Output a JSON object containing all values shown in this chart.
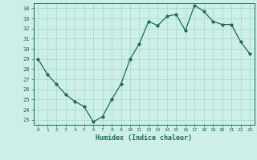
{
  "x": [
    0,
    1,
    2,
    3,
    4,
    5,
    6,
    7,
    8,
    9,
    10,
    11,
    12,
    13,
    14,
    15,
    16,
    17,
    18,
    19,
    20,
    21,
    22,
    23
  ],
  "y": [
    29,
    27.5,
    26.5,
    25.5,
    24.8,
    24.3,
    22.8,
    23.3,
    25.0,
    26.5,
    29.0,
    30.5,
    32.7,
    32.3,
    33.2,
    33.4,
    31.8,
    34.3,
    33.7,
    32.7,
    32.4,
    32.4,
    30.7,
    29.5
  ],
  "line_color": "#1a6b5a",
  "bg_color": "#ceeee8",
  "grid_color": "#aaddcc",
  "xlabel": "Humidex (Indice chaleur)",
  "ylim": [
    22.5,
    34.5
  ],
  "xlim": [
    -0.5,
    23.5
  ],
  "yticks": [
    23,
    24,
    25,
    26,
    27,
    28,
    29,
    30,
    31,
    32,
    33,
    34
  ],
  "xticks": [
    0,
    1,
    2,
    3,
    4,
    5,
    6,
    7,
    8,
    9,
    10,
    11,
    12,
    13,
    14,
    15,
    16,
    17,
    18,
    19,
    20,
    21,
    22,
    23
  ]
}
